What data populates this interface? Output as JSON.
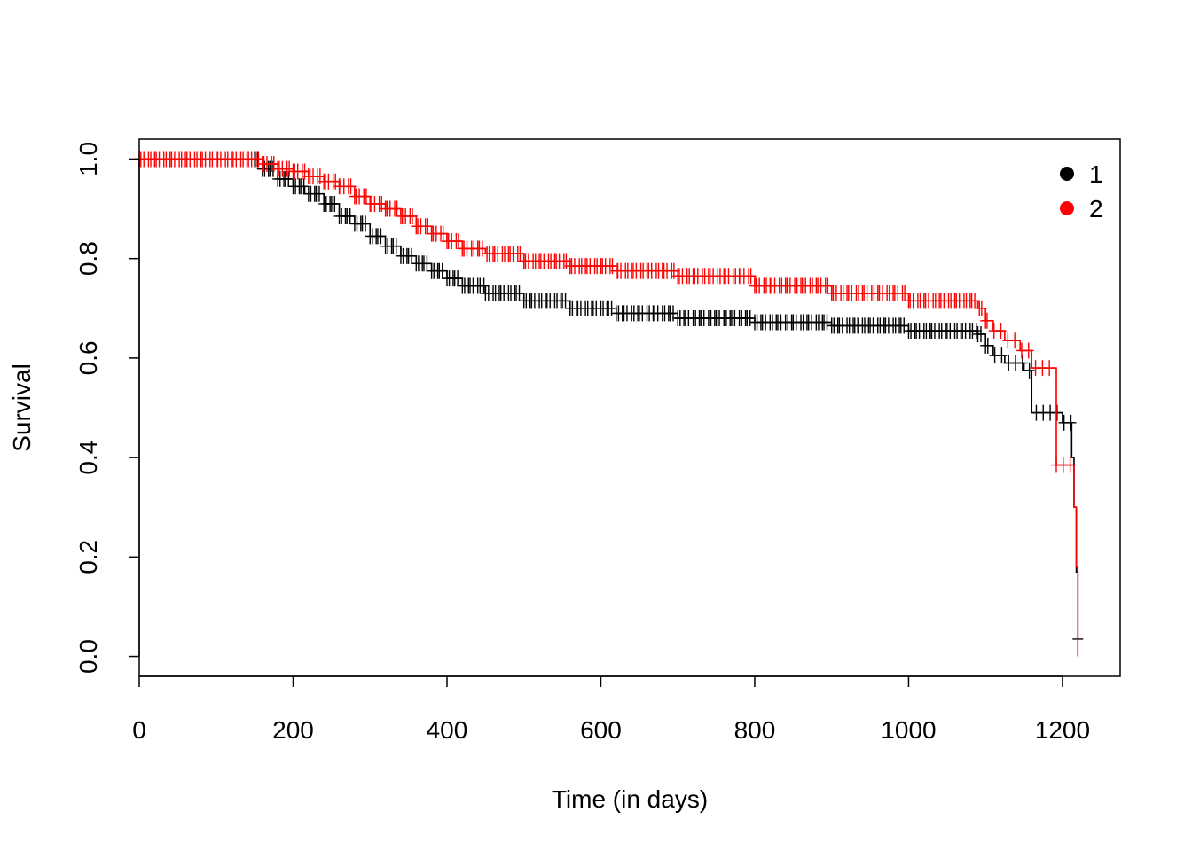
{
  "chart_data": {
    "type": "line",
    "subtype": "kaplan-meier-survival",
    "title": "",
    "xlabel": "Time (in days)",
    "ylabel": "Survival",
    "xlim": [
      0,
      1275
    ],
    "ylim": [
      -0.04,
      1.04
    ],
    "x_ticks": [
      0,
      200,
      400,
      600,
      800,
      1000,
      1200
    ],
    "y_ticks": [
      0.0,
      0.2,
      0.4,
      0.6,
      0.8,
      1.0
    ],
    "x_tick_labels": [
      "0",
      "200",
      "400",
      "600",
      "800",
      "1000",
      "1200"
    ],
    "y_tick_labels": [
      "0.0",
      "0.2",
      "0.4",
      "0.6",
      "0.8",
      "1.0"
    ],
    "grid": false,
    "legend_position": "top-right",
    "series": [
      {
        "name": "1",
        "color": "#000000",
        "points": [
          [
            0,
            1.0
          ],
          [
            150,
            1.0
          ],
          [
            160,
            0.98
          ],
          [
            180,
            0.96
          ],
          [
            200,
            0.945
          ],
          [
            215,
            0.93
          ],
          [
            240,
            0.91
          ],
          [
            260,
            0.885
          ],
          [
            280,
            0.87
          ],
          [
            300,
            0.845
          ],
          [
            320,
            0.825
          ],
          [
            340,
            0.805
          ],
          [
            360,
            0.79
          ],
          [
            380,
            0.775
          ],
          [
            400,
            0.76
          ],
          [
            420,
            0.745
          ],
          [
            450,
            0.73
          ],
          [
            500,
            0.715
          ],
          [
            560,
            0.7
          ],
          [
            620,
            0.69
          ],
          [
            700,
            0.68
          ],
          [
            800,
            0.672
          ],
          [
            900,
            0.665
          ],
          [
            1000,
            0.655
          ],
          [
            1090,
            0.648
          ],
          [
            1100,
            0.625
          ],
          [
            1110,
            0.605
          ],
          [
            1125,
            0.59
          ],
          [
            1150,
            0.575
          ],
          [
            1160,
            0.49
          ],
          [
            1200,
            0.47
          ],
          [
            1212,
            0.4
          ],
          [
            1215,
            0.3
          ],
          [
            1218,
            0.17
          ],
          [
            1220,
            0.035
          ]
        ],
        "censor_range": [
          150,
          1225
        ]
      },
      {
        "name": "2",
        "color": "#ff0000",
        "points": [
          [
            0,
            1.0
          ],
          [
            150,
            1.0
          ],
          [
            160,
            0.99
          ],
          [
            180,
            0.98
          ],
          [
            200,
            0.975
          ],
          [
            220,
            0.965
          ],
          [
            240,
            0.955
          ],
          [
            260,
            0.945
          ],
          [
            280,
            0.925
          ],
          [
            300,
            0.91
          ],
          [
            320,
            0.9
          ],
          [
            340,
            0.885
          ],
          [
            360,
            0.865
          ],
          [
            380,
            0.85
          ],
          [
            400,
            0.835
          ],
          [
            420,
            0.82
          ],
          [
            450,
            0.81
          ],
          [
            500,
            0.795
          ],
          [
            560,
            0.785
          ],
          [
            620,
            0.775
          ],
          [
            700,
            0.765
          ],
          [
            800,
            0.745
          ],
          [
            900,
            0.73
          ],
          [
            1000,
            0.715
          ],
          [
            1090,
            0.7
          ],
          [
            1100,
            0.675
          ],
          [
            1110,
            0.655
          ],
          [
            1125,
            0.635
          ],
          [
            1145,
            0.615
          ],
          [
            1160,
            0.58
          ],
          [
            1190,
            0.58
          ],
          [
            1192,
            0.385
          ],
          [
            1212,
            0.385
          ],
          [
            1215,
            0.3
          ],
          [
            1218,
            0.18
          ],
          [
            1220,
            0.0
          ]
        ],
        "censor_range": [
          0,
          1215
        ]
      }
    ]
  }
}
